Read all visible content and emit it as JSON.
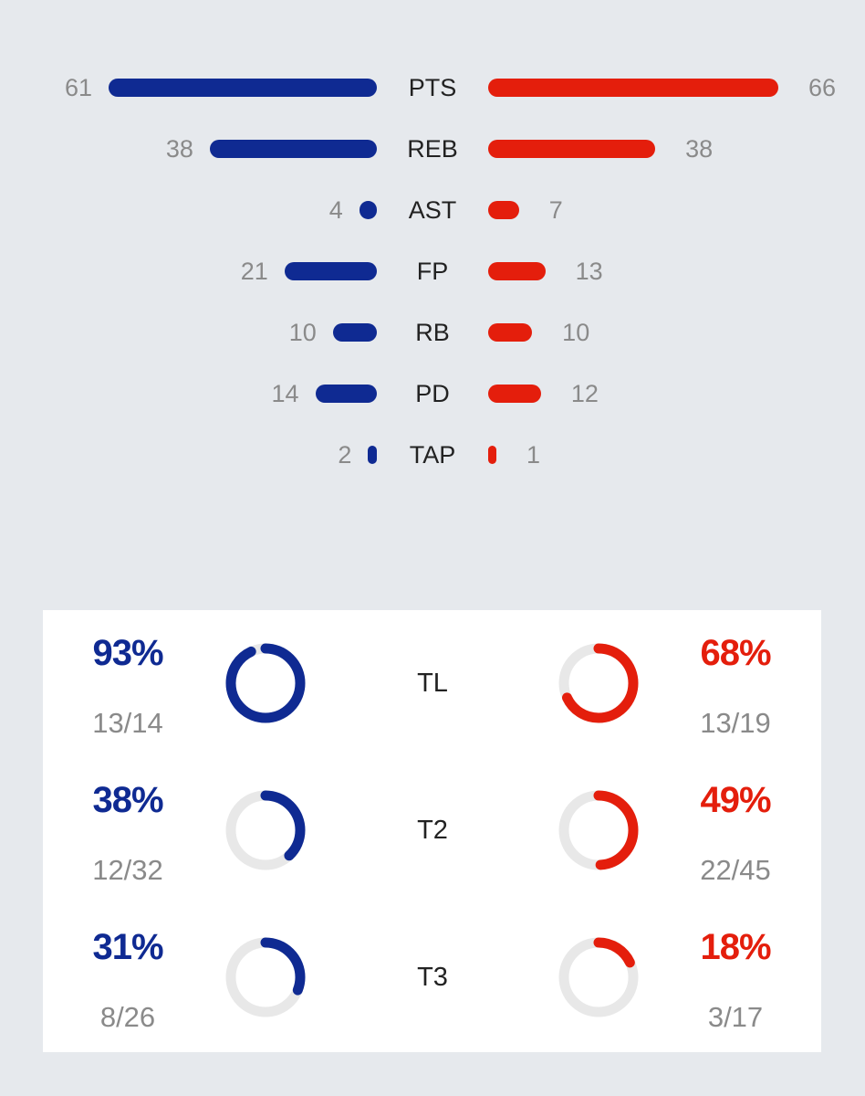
{
  "colors": {
    "home": "#0f2a92",
    "away": "#e41e0c",
    "track": "#e8e8e8"
  },
  "chart_data": [
    {
      "type": "bar",
      "orientation": "diverging-horizontal",
      "categories": [
        "PTS",
        "REB",
        "AST",
        "FP",
        "RB",
        "PD",
        "TAP"
      ],
      "series": [
        {
          "values": [
            61,
            38,
            4,
            21,
            10,
            14,
            2
          ],
          "color": "#0f2a92",
          "side": "left"
        },
        {
          "values": [
            66,
            38,
            7,
            13,
            10,
            12,
            1
          ],
          "color": "#e41e0c",
          "side": "right"
        }
      ],
      "labels": {
        "home": [
          "61",
          "38",
          "4",
          "21",
          "10",
          "14",
          "2"
        ],
        "away": [
          "66",
          "38",
          "7",
          "13",
          "10",
          "12",
          "1"
        ]
      }
    },
    {
      "type": "donut",
      "categories": [
        "TL",
        "T2",
        "T3"
      ],
      "home": [
        {
          "pct": 93,
          "pct_label": "93%",
          "made": 13,
          "attempted": 14,
          "frac_label": "13/14"
        },
        {
          "pct": 38,
          "pct_label": "38%",
          "made": 12,
          "attempted": 32,
          "frac_label": "12/32"
        },
        {
          "pct": 31,
          "pct_label": "31%",
          "made": 8,
          "attempted": 26,
          "frac_label": "8/26"
        }
      ],
      "away": [
        {
          "pct": 68,
          "pct_label": "68%",
          "made": 13,
          "attempted": 19,
          "frac_label": "13/19"
        },
        {
          "pct": 49,
          "pct_label": "49%",
          "made": 22,
          "attempted": 45,
          "frac_label": "22/45"
        },
        {
          "pct": 18,
          "pct_label": "18%",
          "made": 3,
          "attempted": 17,
          "frac_label": "3/17"
        }
      ]
    }
  ]
}
